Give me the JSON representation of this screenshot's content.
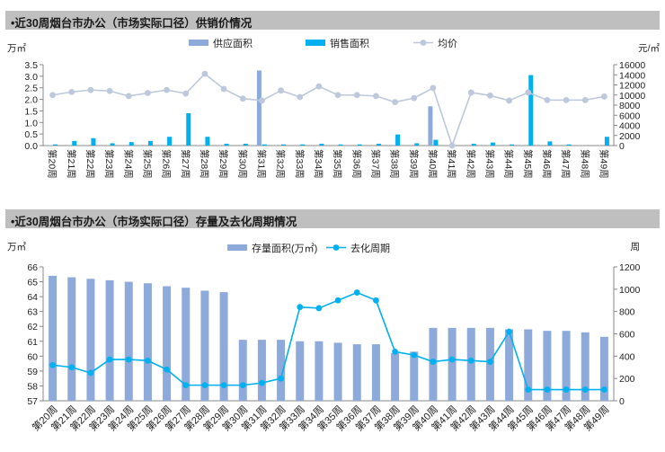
{
  "chart_data": [
    {
      "type": "bar",
      "title": "•近30周烟台市办公（市场实际口径）供销价情况",
      "y_left_unit": "万㎡",
      "y_right_unit": "元/㎡",
      "ylim_left": [
        0,
        3.5
      ],
      "yticks_left": [
        "0.0",
        "0.5",
        "1.0",
        "1.5",
        "2.0",
        "2.5",
        "3.0",
        "3.5"
      ],
      "ylim_right": [
        0,
        16000
      ],
      "yticks_right": [
        "0",
        "2000",
        "4000",
        "6000",
        "8000",
        "10000",
        "12000",
        "14000",
        "16000"
      ],
      "legend_position": "top",
      "categories": [
        "第20周",
        "第21周",
        "第22周",
        "第23周",
        "第24周",
        "第25周",
        "第26周",
        "第27周",
        "第28周",
        "第29周",
        "第30周",
        "第31周",
        "第32周",
        "第33周",
        "第34周",
        "第35周",
        "第36周",
        "第37周",
        "第38周",
        "第39周",
        "第40周",
        "第41周",
        "第42周",
        "第43周",
        "第44周",
        "第45周",
        "第46周",
        "第47周",
        "第48周",
        "第49周"
      ],
      "series": [
        {
          "name": "供应面积",
          "kind": "bar",
          "axis": "left",
          "color": "#8eaadb",
          "values": [
            0.02,
            0,
            0,
            0,
            0,
            0,
            0,
            0,
            0,
            0,
            0,
            3.25,
            0,
            0,
            0,
            0,
            0,
            0,
            0,
            0,
            1.7,
            0,
            0,
            0,
            0,
            0,
            0,
            0,
            0,
            0
          ]
        },
        {
          "name": "销售面积",
          "kind": "bar",
          "axis": "left",
          "color": "#00b0f0",
          "values": [
            0.05,
            0.2,
            0.32,
            0.1,
            0.15,
            0.2,
            0.38,
            1.4,
            0.38,
            0.08,
            0.08,
            0.05,
            0.05,
            0.05,
            0.08,
            0.05,
            0.05,
            0.08,
            0.48,
            0.1,
            0.25,
            0,
            0.08,
            0.13,
            0.05,
            3.05,
            0.18,
            0.05,
            0,
            0.38
          ]
        },
        {
          "name": "均价",
          "kind": "line",
          "axis": "right",
          "color": "#bdc8dc",
          "values": [
            10000,
            10600,
            11000,
            10800,
            9800,
            10400,
            11000,
            10300,
            14200,
            11200,
            9300,
            8900,
            10900,
            9600,
            11700,
            10000,
            10000,
            9800,
            8600,
            9400,
            11400,
            0,
            10500,
            9900,
            8900,
            10500,
            9000,
            9000,
            9000,
            9700
          ]
        }
      ]
    },
    {
      "type": "bar",
      "title": "•近30周烟台市办公（市场实际口径）存量及去化周期情况",
      "y_left_unit": "万㎡",
      "y_right_unit": "周",
      "ylim_left": [
        57,
        66
      ],
      "yticks_left": [
        "57",
        "58",
        "59",
        "60",
        "61",
        "62",
        "63",
        "64",
        "65",
        "66"
      ],
      "ylim_right": [
        0,
        1200
      ],
      "yticks_right": [
        "0",
        "200",
        "400",
        "600",
        "800",
        "1000",
        "1200"
      ],
      "legend_position": "top",
      "categories": [
        "第20周",
        "第21周",
        "第22周",
        "第23周",
        "第24周",
        "第25周",
        "第26周",
        "第27周",
        "第28周",
        "第29周",
        "第30周",
        "第31周",
        "第32周",
        "第33周",
        "第34周",
        "第35周",
        "第36周",
        "第37周",
        "第38周",
        "第39周",
        "第40周",
        "第41周",
        "第42周",
        "第43周",
        "第44周",
        "第45周",
        "第46周",
        "第47周",
        "第48周",
        "第49周"
      ],
      "series": [
        {
          "name": "存量面积(万㎡)",
          "kind": "bar",
          "axis": "left",
          "color": "#8eaadb",
          "values": [
            65.4,
            65.3,
            65.2,
            65.1,
            65.0,
            64.9,
            64.7,
            64.6,
            64.4,
            64.3,
            61.1,
            61.1,
            61.1,
            61.0,
            61.0,
            60.9,
            60.8,
            60.8,
            60.2,
            60.3,
            61.9,
            61.9,
            61.9,
            61.9,
            61.8,
            61.8,
            61.7,
            61.7,
            61.6,
            61.3
          ]
        },
        {
          "name": "去化周期",
          "kind": "line",
          "axis": "right",
          "color": "#00b0f0",
          "values": [
            320,
            300,
            250,
            370,
            370,
            360,
            280,
            140,
            140,
            140,
            140,
            160,
            200,
            840,
            830,
            900,
            970,
            900,
            440,
            410,
            350,
            370,
            360,
            350,
            620,
            100,
            100,
            100,
            100,
            100
          ]
        }
      ]
    }
  ]
}
